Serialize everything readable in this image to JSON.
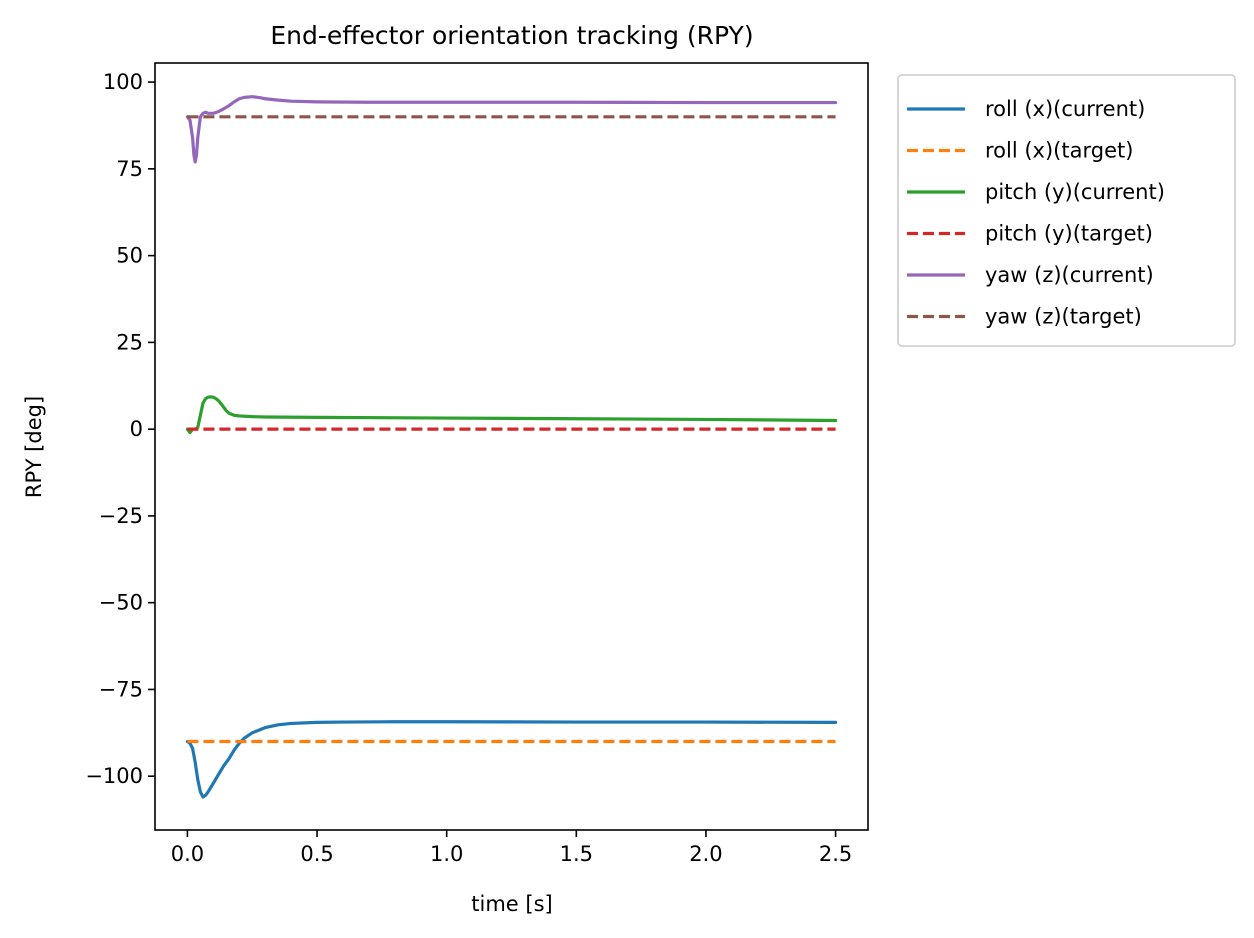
{
  "chart_data": {
    "type": "line",
    "title": "End-effector orientation tracking (RPY)",
    "xlabel": "time [s]",
    "ylabel": "RPY [deg]",
    "xlim": [
      -0.125,
      2.625
    ],
    "ylim": [
      -115.5,
      105.5
    ],
    "xticks": [
      0.0,
      0.5,
      1.0,
      1.5,
      2.0,
      2.5
    ],
    "xtick_labels": [
      "0.0",
      "0.5",
      "1.0",
      "1.5",
      "2.0",
      "2.5"
    ],
    "yticks": [
      100,
      75,
      50,
      25,
      0,
      -25,
      -50,
      -75,
      -100
    ],
    "ytick_labels": [
      "100",
      "75",
      "50",
      "25",
      "0",
      "−25",
      "−50",
      "−75",
      "−100"
    ],
    "grid": false,
    "legend_position": "outside-right-top",
    "series": [
      {
        "name": "roll (x)(current)",
        "color": "#1f77b4",
        "style": "solid",
        "x": [
          0.0,
          0.01,
          0.02,
          0.03,
          0.04,
          0.05,
          0.06,
          0.07,
          0.08,
          0.1,
          0.12,
          0.14,
          0.16,
          0.18,
          0.2,
          0.22,
          0.25,
          0.3,
          0.35,
          0.4,
          0.5,
          0.6,
          0.8,
          1.0,
          1.5,
          2.0,
          2.5
        ],
        "y": [
          -90.0,
          -90.5,
          -92.0,
          -96.0,
          -101.0,
          -104.5,
          -106.0,
          -105.5,
          -104.5,
          -102.0,
          -99.5,
          -97.0,
          -95.0,
          -92.5,
          -90.5,
          -89.0,
          -87.5,
          -86.0,
          -85.2,
          -84.8,
          -84.5,
          -84.4,
          -84.3,
          -84.3,
          -84.4,
          -84.4,
          -84.5
        ]
      },
      {
        "name": "roll (x)(target)",
        "color": "#ff7f0e",
        "style": "dashed",
        "x": [
          0.0,
          2.5
        ],
        "y": [
          -90.0,
          -90.0
        ]
      },
      {
        "name": "pitch (y)(current)",
        "color": "#2ca02c",
        "style": "solid",
        "x": [
          0.0,
          0.01,
          0.02,
          0.03,
          0.04,
          0.05,
          0.06,
          0.07,
          0.08,
          0.09,
          0.1,
          0.11,
          0.12,
          0.13,
          0.14,
          0.15,
          0.16,
          0.18,
          0.2,
          0.25,
          0.3,
          0.5,
          1.0,
          1.5,
          2.0,
          2.5
        ],
        "y": [
          0.0,
          -1.0,
          0.0,
          0.0,
          0.5,
          4.0,
          7.5,
          8.8,
          9.2,
          9.3,
          9.2,
          8.8,
          8.2,
          7.3,
          6.3,
          5.3,
          4.6,
          4.0,
          3.8,
          3.6,
          3.5,
          3.4,
          3.2,
          3.0,
          2.8,
          2.5
        ]
      },
      {
        "name": "pitch (y)(target)",
        "color": "#d62728",
        "style": "dashed",
        "x": [
          0.0,
          2.5
        ],
        "y": [
          0.0,
          0.0
        ]
      },
      {
        "name": "yaw (z)(current)",
        "color": "#9467bd",
        "style": "solid",
        "x": [
          0.0,
          0.01,
          0.02,
          0.025,
          0.03,
          0.035,
          0.04,
          0.05,
          0.06,
          0.07,
          0.08,
          0.1,
          0.12,
          0.14,
          0.16,
          0.18,
          0.2,
          0.22,
          0.25,
          0.28,
          0.3,
          0.35,
          0.4,
          0.5,
          0.7,
          1.0,
          1.5,
          2.0,
          2.5
        ],
        "y": [
          90.0,
          89.0,
          84.0,
          79.0,
          77.0,
          79.0,
          84.0,
          90.0,
          91.0,
          91.3,
          91.0,
          91.0,
          91.5,
          92.3,
          93.2,
          94.3,
          95.2,
          95.6,
          95.8,
          95.5,
          95.2,
          94.8,
          94.5,
          94.3,
          94.2,
          94.2,
          94.2,
          94.1,
          94.1
        ]
      },
      {
        "name": "yaw (z)(target)",
        "color": "#8c564b",
        "style": "dashed",
        "x": [
          0.0,
          2.5
        ],
        "y": [
          90.0,
          90.0
        ]
      }
    ]
  }
}
